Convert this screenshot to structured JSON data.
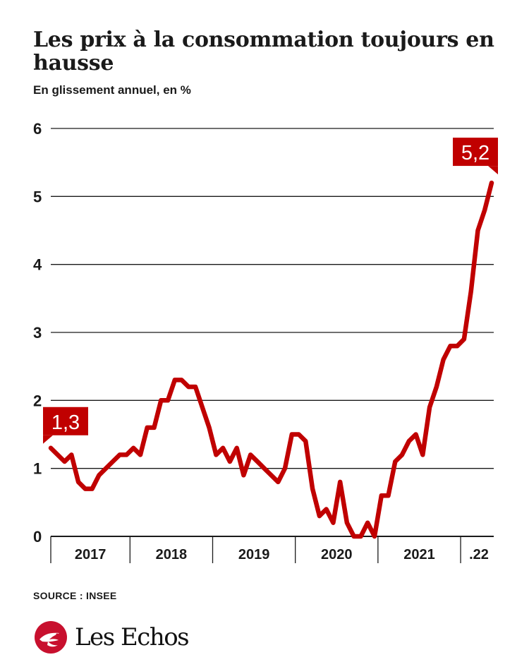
{
  "header": {
    "title": "Les prix à la consommation toujours en hausse",
    "subtitle": "En glissement annuel, en %"
  },
  "footer": {
    "source": "SOURCE : INSEE",
    "logo_text": "Les Echos"
  },
  "colors": {
    "line": "#c00000",
    "grid": "#1a1a1a"
  },
  "chart_data": {
    "type": "line",
    "title": "Les prix à la consommation toujours en hausse",
    "subtitle": "En glissement annuel, en %",
    "xlabel": "",
    "ylabel": "",
    "ylim": [
      0,
      6
    ],
    "yticks": [
      "0",
      "1",
      "2",
      "3",
      "4",
      "5",
      "6"
    ],
    "x_period_labels": [
      "2017",
      "2018",
      "2019",
      "2020",
      "2021",
      ".22"
    ],
    "x": [
      "2017-01",
      "2017-02",
      "2017-03",
      "2017-04",
      "2017-05",
      "2017-06",
      "2017-07",
      "2017-08",
      "2017-09",
      "2017-10",
      "2017-11",
      "2017-12",
      "2018-01",
      "2018-02",
      "2018-03",
      "2018-04",
      "2018-05",
      "2018-06",
      "2018-07",
      "2018-08",
      "2018-09",
      "2018-10",
      "2018-11",
      "2018-12",
      "2019-01",
      "2019-02",
      "2019-03",
      "2019-04",
      "2019-05",
      "2019-06",
      "2019-07",
      "2019-08",
      "2019-09",
      "2019-10",
      "2019-11",
      "2019-12",
      "2020-01",
      "2020-02",
      "2020-03",
      "2020-04",
      "2020-05",
      "2020-06",
      "2020-07",
      "2020-08",
      "2020-09",
      "2020-10",
      "2020-11",
      "2020-12",
      "2021-01",
      "2021-02",
      "2021-03",
      "2021-04",
      "2021-05",
      "2021-06",
      "2021-07",
      "2021-08",
      "2021-09",
      "2021-10",
      "2021-11",
      "2021-12",
      "2022-01",
      "2022-02",
      "2022-03",
      "2022-04",
      "2022-05"
    ],
    "values": [
      1.3,
      1.2,
      1.1,
      1.2,
      0.8,
      0.7,
      0.7,
      0.9,
      1.0,
      1.1,
      1.2,
      1.2,
      1.3,
      1.2,
      1.6,
      1.6,
      2.0,
      2.0,
      2.3,
      2.3,
      2.2,
      2.2,
      1.9,
      1.6,
      1.2,
      1.3,
      1.1,
      1.3,
      0.9,
      1.2,
      1.1,
      1.0,
      0.9,
      0.8,
      1.0,
      1.5,
      1.5,
      1.4,
      0.7,
      0.3,
      0.4,
      0.2,
      0.8,
      0.2,
      0.0,
      0.0,
      0.2,
      0.0,
      0.6,
      0.6,
      1.1,
      1.2,
      1.4,
      1.5,
      1.2,
      1.9,
      2.2,
      2.6,
      2.8,
      2.8,
      2.9,
      3.6,
      4.5,
      4.8,
      5.2
    ],
    "annotations": [
      {
        "text": "1,3",
        "x": "2017-01",
        "y": 1.3
      },
      {
        "text": "5,2",
        "x": "2022-05",
        "y": 5.2
      }
    ],
    "grid": true,
    "legend": "none"
  }
}
